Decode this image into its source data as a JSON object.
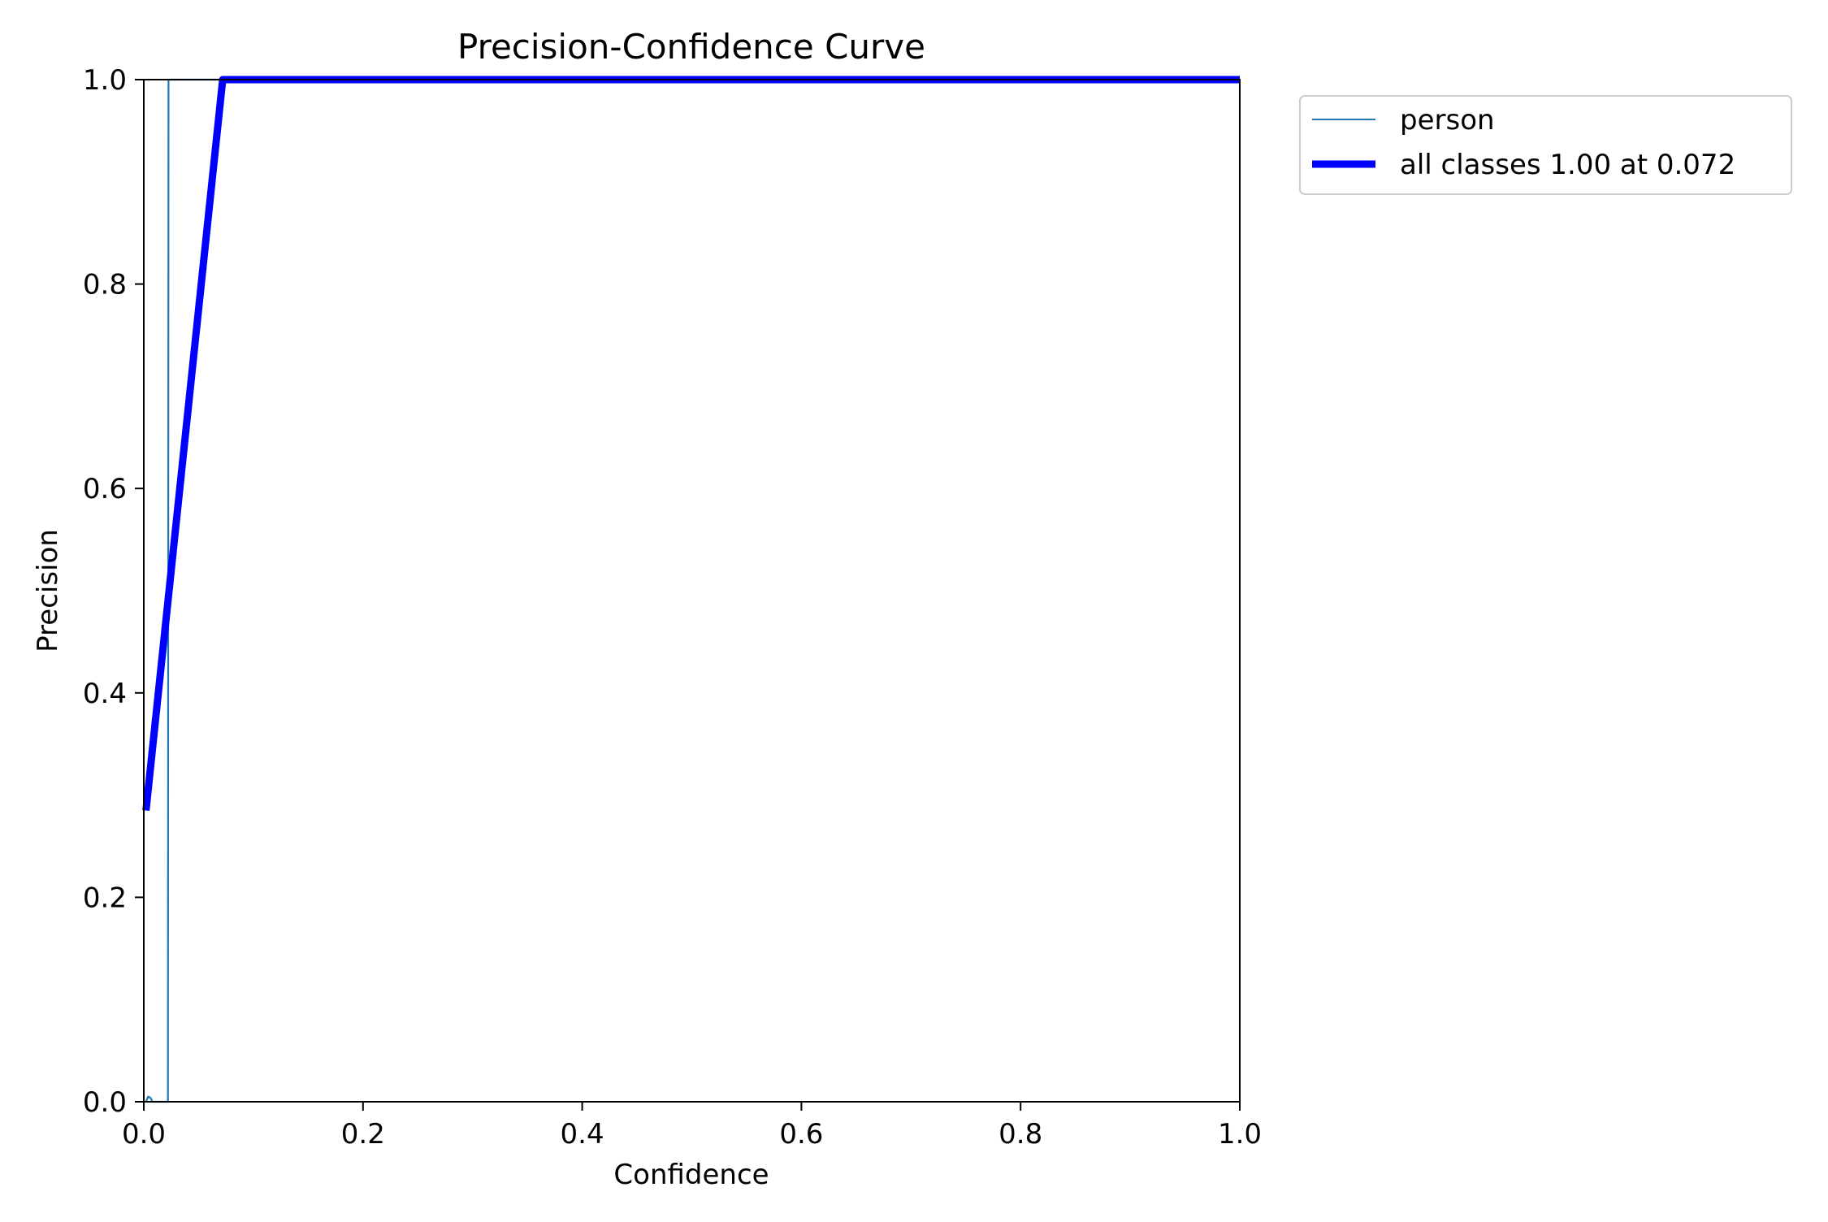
{
  "chart_data": {
    "type": "line",
    "title": "Precision-Confidence Curve",
    "xlabel": "Confidence",
    "ylabel": "Precision",
    "xlim": [
      0,
      1
    ],
    "ylim": [
      0,
      1
    ],
    "x_ticks": [
      0.0,
      0.2,
      0.4,
      0.6,
      0.8,
      1.0
    ],
    "y_ticks": [
      0.0,
      0.2,
      0.4,
      0.6,
      0.8,
      1.0
    ],
    "x_tick_labels": [
      "0.0",
      "0.2",
      "0.4",
      "0.6",
      "0.8",
      "1.0"
    ],
    "y_tick_labels": [
      "0.0",
      "0.2",
      "0.4",
      "0.6",
      "0.8",
      "1.0"
    ],
    "grid": false,
    "legend_position": "outside-top-right",
    "series": [
      {
        "name": "person",
        "color": "#1f77b4",
        "emphasis": "thin",
        "x": [
          0.002,
          0.004,
          0.006,
          0.008,
          0.022,
          0.0225,
          0.03,
          0.1,
          0.3,
          0.5,
          0.7,
          0.9,
          1.0
        ],
        "y": [
          0.0,
          0.005,
          0.004,
          0.0,
          0.0,
          1.0,
          1.0,
          1.0,
          1.0,
          1.0,
          1.0,
          1.0,
          1.0
        ]
      },
      {
        "name": "all classes 1.00 at 0.072",
        "color": "#0000ff",
        "emphasis": "thick",
        "x": [
          0.002,
          0.072,
          0.2,
          0.4,
          0.6,
          0.8,
          1.0
        ],
        "y": [
          0.285,
          1.0,
          1.0,
          1.0,
          1.0,
          1.0,
          1.0
        ]
      }
    ]
  }
}
